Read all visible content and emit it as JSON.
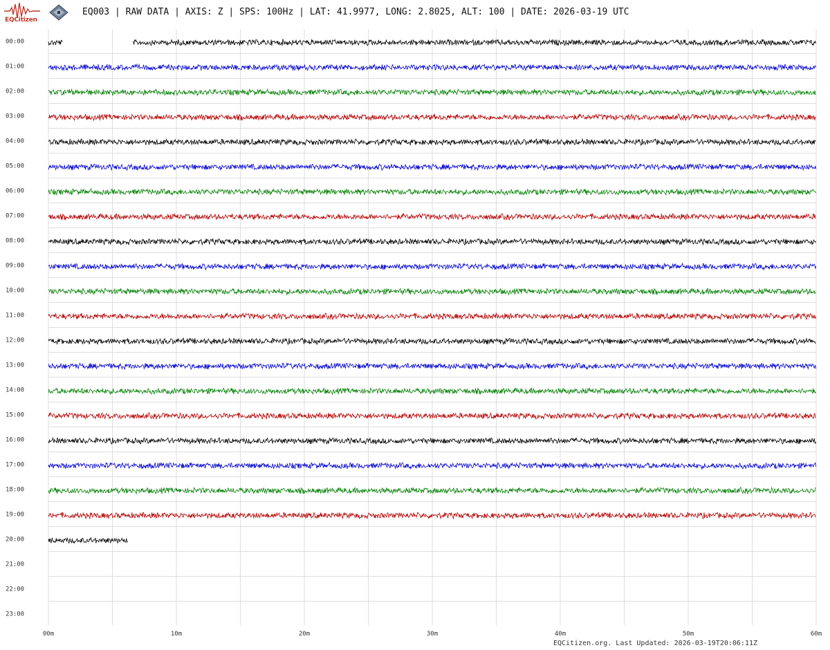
{
  "logo": {
    "text": "EQCitizen"
  },
  "header": {
    "station": "EQ003",
    "data_type": "RAW DATA",
    "axis": "AXIS: Z",
    "sps": "SPS: 100Hz",
    "lat": "LAT: 41.9977",
    "long": "LONG: 2.8025",
    "alt": "ALT: 100",
    "date": "DATE: 2026-03-19 UTC",
    "separator": " | "
  },
  "footer": {
    "text": "EQCitizen.org. Last Updated: 2026-03-19T20:06:11Z"
  },
  "chart_data": {
    "type": "line",
    "title": "EQ003 | RAW DATA | AXIS: Z | SPS: 100Hz | LAT: 41.9977, LONG: 2.8025, ALT: 100 | DATE: 2026-03-19 UTC",
    "xlabel": "",
    "ylabel": "",
    "x_ticks": [
      "00m",
      "10m",
      "20m",
      "30m",
      "40m",
      "50m",
      "60m"
    ],
    "xlim": [
      0,
      60
    ],
    "y_ticks": [
      "00:00",
      "01:00",
      "02:00",
      "03:00",
      "04:00",
      "05:00",
      "06:00",
      "07:00",
      "08:00",
      "09:00",
      "10:00",
      "11:00",
      "12:00",
      "13:00",
      "14:00",
      "15:00",
      "16:00",
      "17:00",
      "18:00",
      "19:00",
      "20:00",
      "21:00",
      "22:00",
      "23:00"
    ],
    "grid": true,
    "colors": [
      "#000000",
      "#0000cc",
      "#007f00",
      "#b30000"
    ],
    "rows": [
      {
        "hour": "00:00",
        "segments": [
          [
            0,
            1.1
          ],
          [
            6.6,
            60
          ]
        ],
        "color": "#000000"
      },
      {
        "hour": "01:00",
        "segments": [
          [
            0,
            60
          ]
        ],
        "color": "#0000cc"
      },
      {
        "hour": "02:00",
        "segments": [
          [
            0,
            60
          ]
        ],
        "color": "#007f00"
      },
      {
        "hour": "03:00",
        "segments": [
          [
            0,
            60
          ]
        ],
        "color": "#b30000"
      },
      {
        "hour": "04:00",
        "segments": [
          [
            0,
            60
          ]
        ],
        "color": "#000000"
      },
      {
        "hour": "05:00",
        "segments": [
          [
            0,
            60
          ]
        ],
        "color": "#0000cc"
      },
      {
        "hour": "06:00",
        "segments": [
          [
            0,
            60
          ]
        ],
        "color": "#007f00"
      },
      {
        "hour": "07:00",
        "segments": [
          [
            0,
            60
          ]
        ],
        "color": "#b30000"
      },
      {
        "hour": "08:00",
        "segments": [
          [
            0,
            60
          ]
        ],
        "color": "#000000"
      },
      {
        "hour": "09:00",
        "segments": [
          [
            0,
            60
          ]
        ],
        "color": "#0000cc"
      },
      {
        "hour": "10:00",
        "segments": [
          [
            0,
            60
          ]
        ],
        "color": "#007f00"
      },
      {
        "hour": "11:00",
        "segments": [
          [
            0,
            60
          ]
        ],
        "color": "#b30000"
      },
      {
        "hour": "12:00",
        "segments": [
          [
            0,
            60
          ]
        ],
        "color": "#000000"
      },
      {
        "hour": "13:00",
        "segments": [
          [
            0,
            60
          ]
        ],
        "color": "#0000cc"
      },
      {
        "hour": "14:00",
        "segments": [
          [
            0,
            60
          ]
        ],
        "color": "#007f00"
      },
      {
        "hour": "15:00",
        "segments": [
          [
            0,
            60
          ]
        ],
        "color": "#b30000"
      },
      {
        "hour": "16:00",
        "segments": [
          [
            0,
            60
          ]
        ],
        "color": "#000000"
      },
      {
        "hour": "17:00",
        "segments": [
          [
            0,
            60
          ]
        ],
        "color": "#0000cc"
      },
      {
        "hour": "18:00",
        "segments": [
          [
            0,
            60
          ]
        ],
        "color": "#007f00"
      },
      {
        "hour": "19:00",
        "segments": [
          [
            0,
            60
          ]
        ],
        "color": "#b30000"
      },
      {
        "hour": "20:00",
        "segments": [
          [
            0,
            6.2
          ]
        ],
        "color": "#000000"
      },
      {
        "hour": "21:00",
        "segments": [],
        "color": "#0000cc"
      },
      {
        "hour": "22:00",
        "segments": [],
        "color": "#007f00"
      },
      {
        "hour": "23:00",
        "segments": [],
        "color": "#b30000"
      }
    ]
  }
}
